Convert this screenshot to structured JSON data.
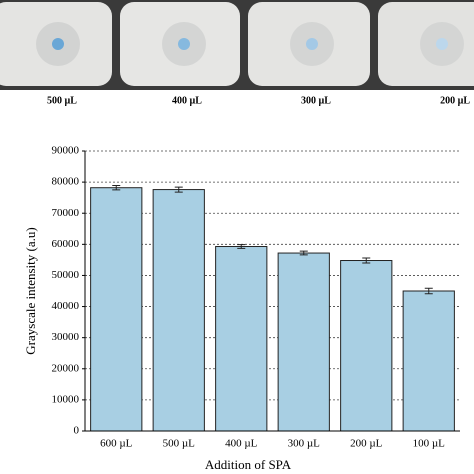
{
  "photo": {
    "labels": [
      "500 µL",
      "400 µL",
      "300 µL",
      "200 µL"
    ]
  },
  "chart_data": {
    "type": "bar",
    "x_label": "Addition of SPA",
    "y_label": "Grayscale intensity (a.u)",
    "categories": [
      "600 µL",
      "500 µL",
      "400 µL",
      "300 µL",
      "200 µL",
      "100 µL"
    ],
    "values": [
      78200,
      77600,
      59300,
      57200,
      54800,
      45000
    ],
    "errors": [
      700,
      800,
      600,
      600,
      800,
      900
    ],
    "color": "#a8cfe3",
    "ylim": [
      0,
      90000
    ],
    "yticks": [
      0,
      10000,
      20000,
      30000,
      40000,
      50000,
      60000,
      70000,
      80000,
      90000
    ],
    "grid": true
  }
}
